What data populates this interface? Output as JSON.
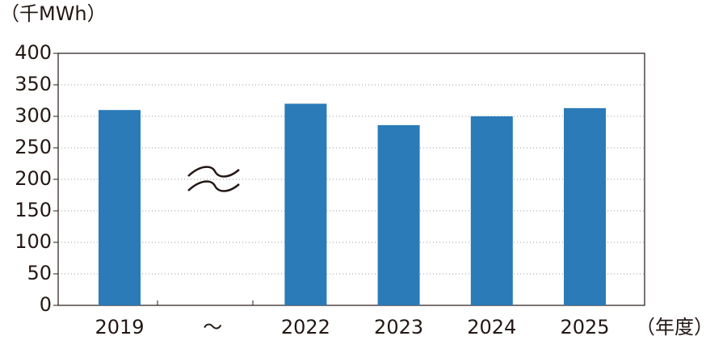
{
  "chart_data": {
    "type": "bar",
    "y_label": "（千MWh）",
    "x_label": "（年度）",
    "categories": [
      "2019",
      "～",
      "2022",
      "2023",
      "2024",
      "2025"
    ],
    "values": [
      310,
      null,
      320,
      286,
      300,
      313
    ],
    "color": "#2a7bb8",
    "ylim": [
      0,
      400
    ],
    "yticks": [
      0,
      50,
      100,
      150,
      200,
      250,
      300,
      350,
      400
    ],
    "grid": true
  }
}
